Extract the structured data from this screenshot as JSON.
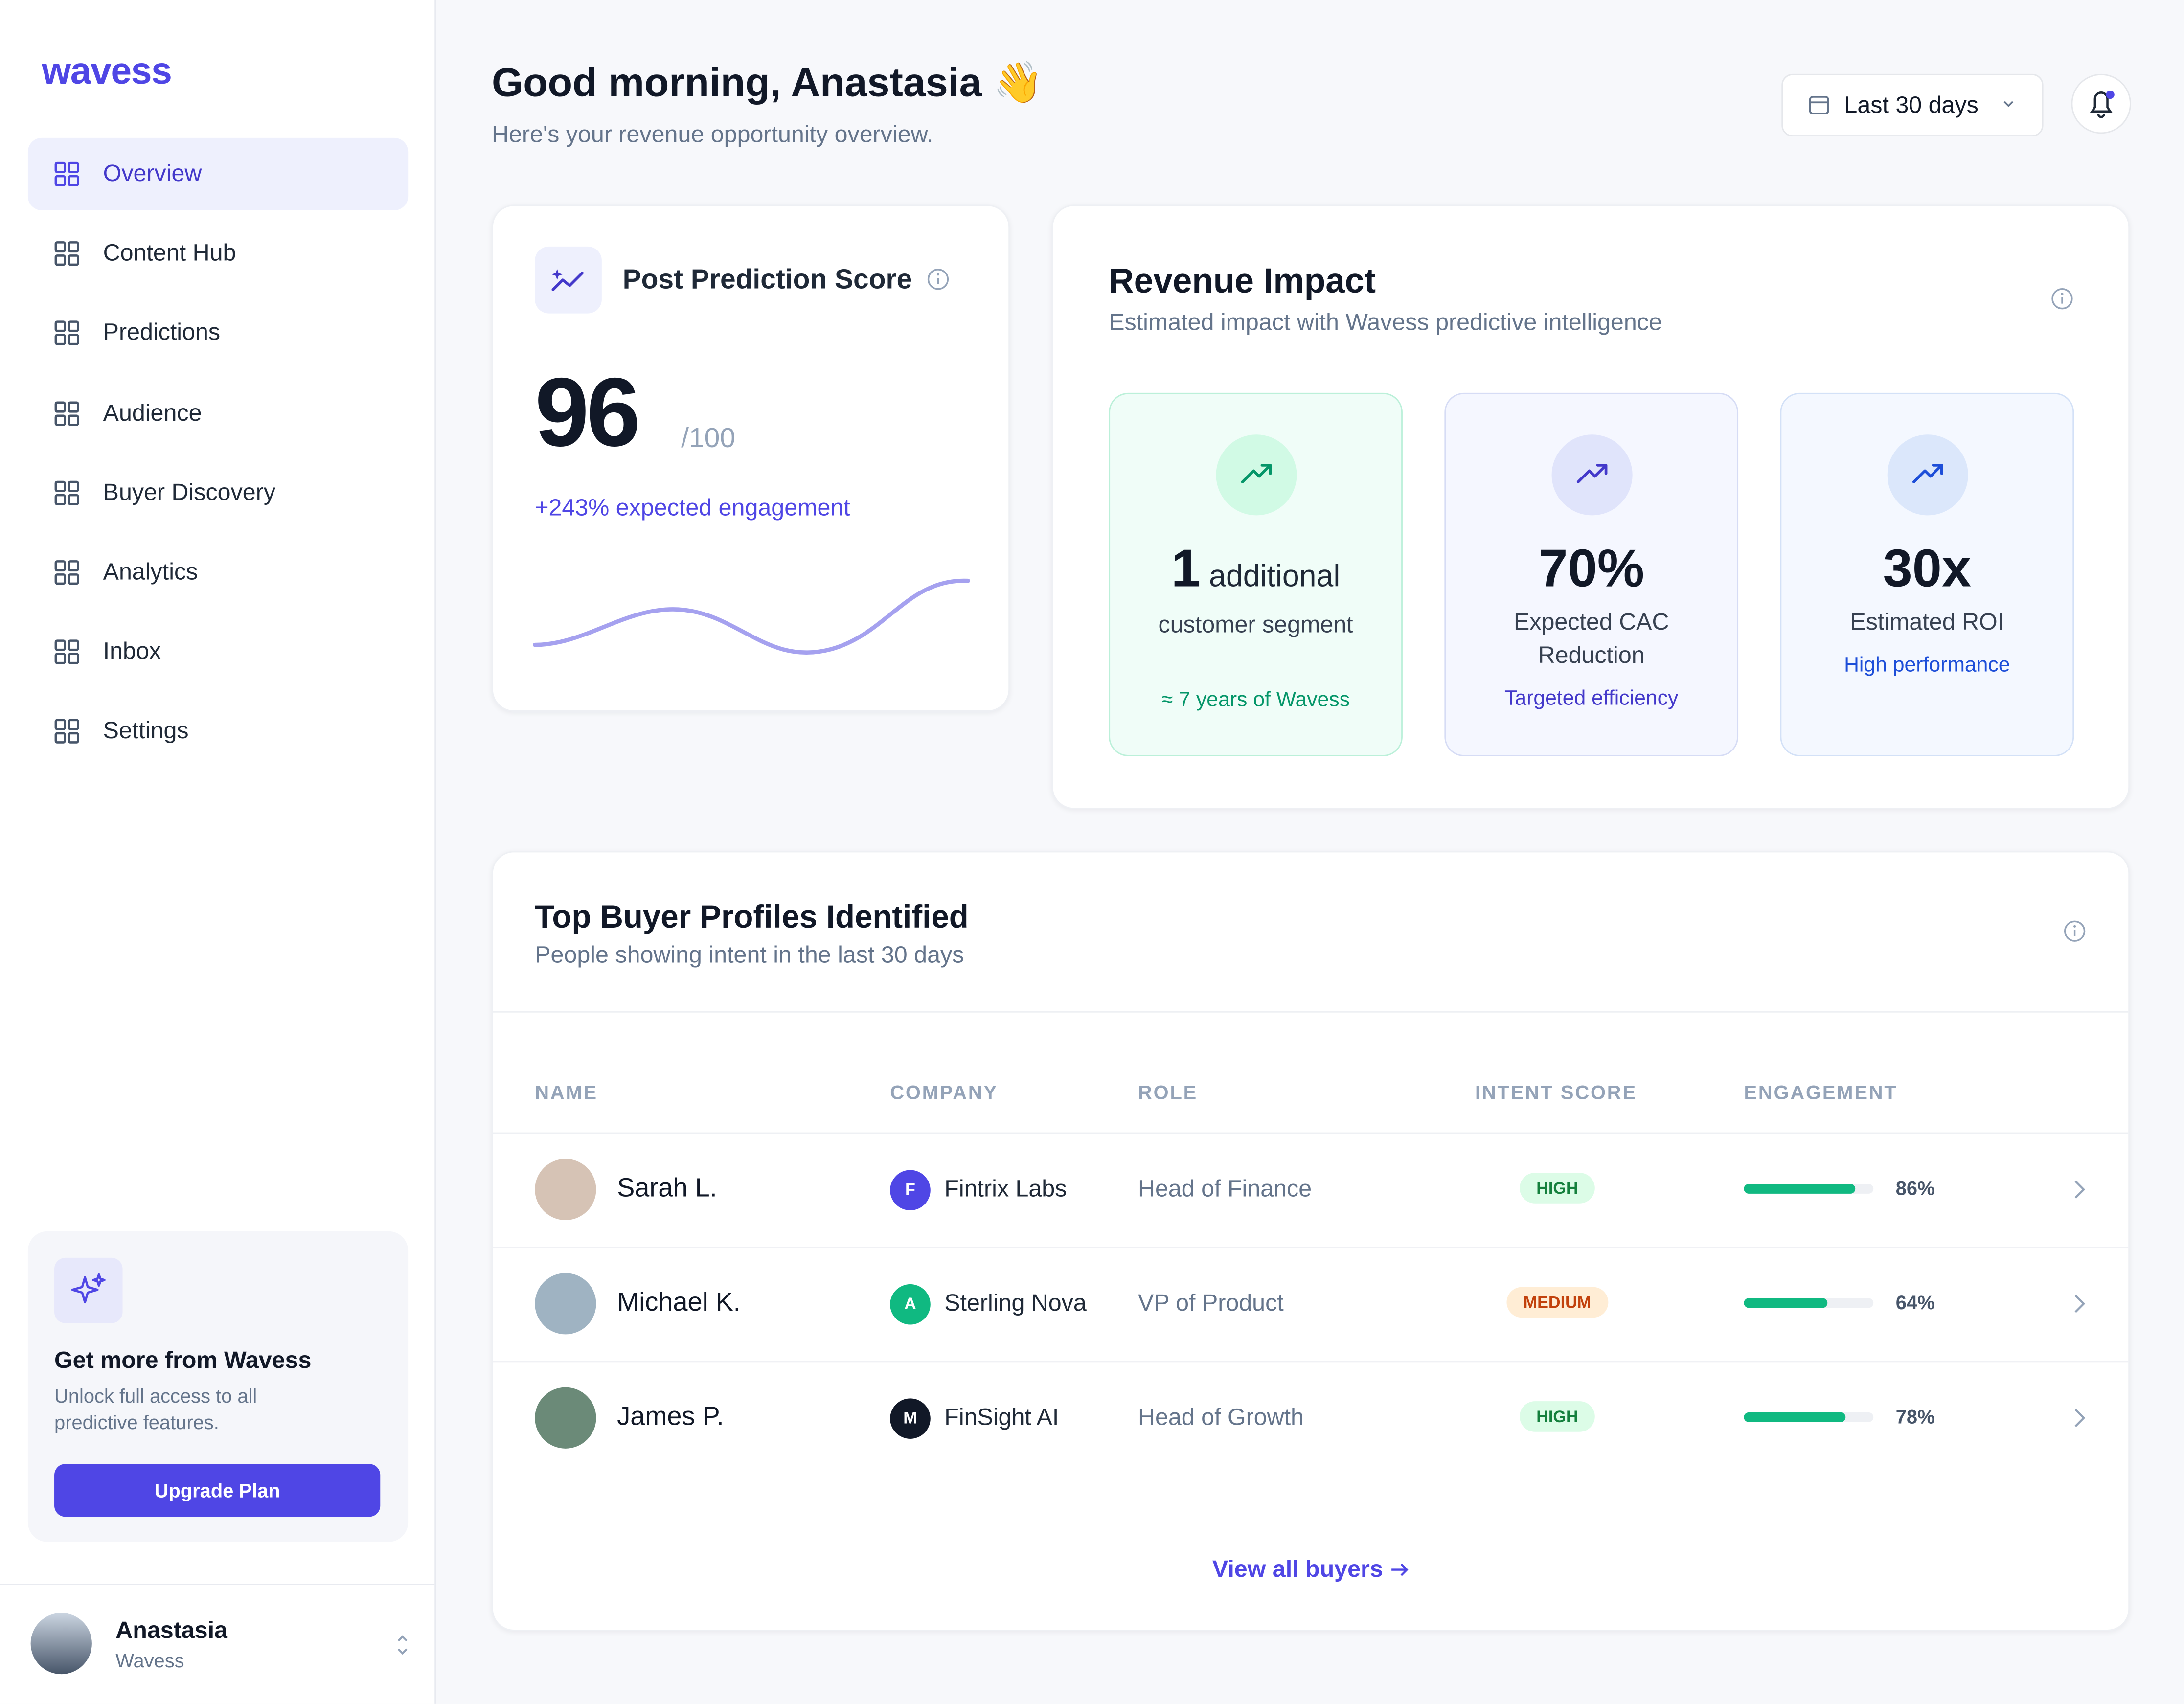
{
  "sidebar": {
    "logo": "wavess",
    "nav": [
      "Overview",
      "Content Hub",
      "Predictions",
      "Audience",
      "Buyer Discovery",
      "Analytics",
      "Inbox",
      "Settings"
    ],
    "upgrade": {
      "title": "Get more from Wavess",
      "text": "Unlock full access to all predictive features.",
      "button": "Upgrade Plan"
    },
    "user": {
      "name": "Anastasia",
      "org": "Wavess"
    }
  },
  "header": {
    "title": "Good morning, Anastasia 👋",
    "subtitle": "Here's your revenue opportunity overview.",
    "date_range": "Last 30 days"
  },
  "score_card": {
    "title": "Post Prediction Score",
    "score": "96",
    "max": "/100",
    "delta": "+243% expected engagement"
  },
  "revenue": {
    "title": "Revenue Impact",
    "subtitle": "Estimated impact with Wavess predictive intelligence",
    "metrics": [
      {
        "value": "1",
        "unit": "additional",
        "label": "customer segment",
        "note": "≈ 7 years of Wavess",
        "color": "#059669",
        "bg": "#f0fdf8",
        "border": "#bbf0d9",
        "icon_bg": "#d1fae5"
      },
      {
        "value": "70%",
        "label": "Expected CAC Reduction",
        "note": "Targeted efficiency",
        "color": "#4338ca",
        "bg": "#f5f7ff",
        "border": "#d6dcf5",
        "icon_bg": "#e0e4fb"
      },
      {
        "value": "30x",
        "label": "Estimated ROI",
        "note": "High performance",
        "color": "#1d4ed8",
        "bg": "#f4f8ff",
        "border": "#d3e1f7",
        "icon_bg": "#dbe7fb"
      }
    ]
  },
  "buyers": {
    "title": "Top Buyer Profiles Identified",
    "subtitle": "People showing intent in the last 30 days",
    "columns": [
      "NAME",
      "COMPANY",
      "ROLE",
      "INTENT SCORE",
      "ENGAGEMENT"
    ],
    "rows": [
      {
        "name": "Sarah L.",
        "initial": "F",
        "initial_color": "#4f46e5",
        "company": "Fintrix Labs",
        "role": "Head of Finance",
        "intent": "HIGH",
        "intent_color": "#15803d",
        "intent_bg": "#dcfce7",
        "engagement": 86,
        "engagement_label": "86%"
      },
      {
        "name": "Michael K.",
        "initial": "A",
        "initial_color": "#10b981",
        "company": "Sterling Nova",
        "role": "VP of Product",
        "intent": "MEDIUM",
        "intent_color": "#c2410c",
        "intent_bg": "#ffedd5",
        "engagement": 64,
        "engagement_label": "64%"
      },
      {
        "name": "James P.",
        "initial": "M",
        "initial_color": "#111827",
        "company": "FinSight AI",
        "role": "Head of Growth",
        "intent": "HIGH",
        "intent_color": "#15803d",
        "intent_bg": "#dcfce7",
        "engagement": 78,
        "engagement_label": "78%"
      }
    ],
    "link": "View all buyers"
  }
}
